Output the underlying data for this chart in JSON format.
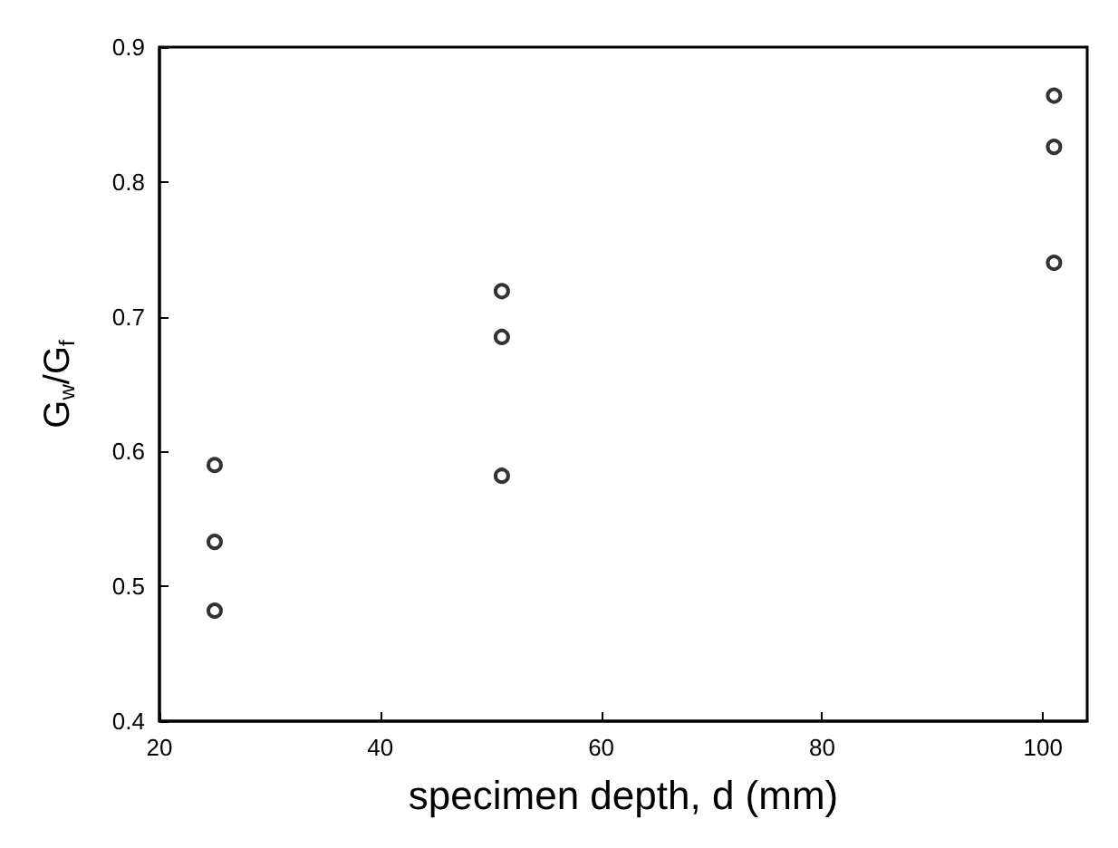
{
  "chart_data": {
    "type": "scatter",
    "xlabel": "specimen depth, d (mm)",
    "ylabel": "G$_{w}$/G$_{f}$",
    "x": [
      25,
      25,
      25,
      51,
      51,
      51,
      101,
      101,
      101
    ],
    "values": [
      0.59,
      0.533,
      0.482,
      0.719,
      0.685,
      0.582,
      0.864,
      0.826,
      0.74
    ],
    "color": "#000000",
    "marker": "circle",
    "grid": false,
    "xlim": [
      20,
      104
    ],
    "xticks": [
      20,
      40,
      60,
      80,
      100
    ],
    "ylim": [
      0.4,
      0.9
    ],
    "yticks": [
      0.4,
      0.5,
      0.6,
      0.7,
      0.8,
      0.9
    ]
  }
}
